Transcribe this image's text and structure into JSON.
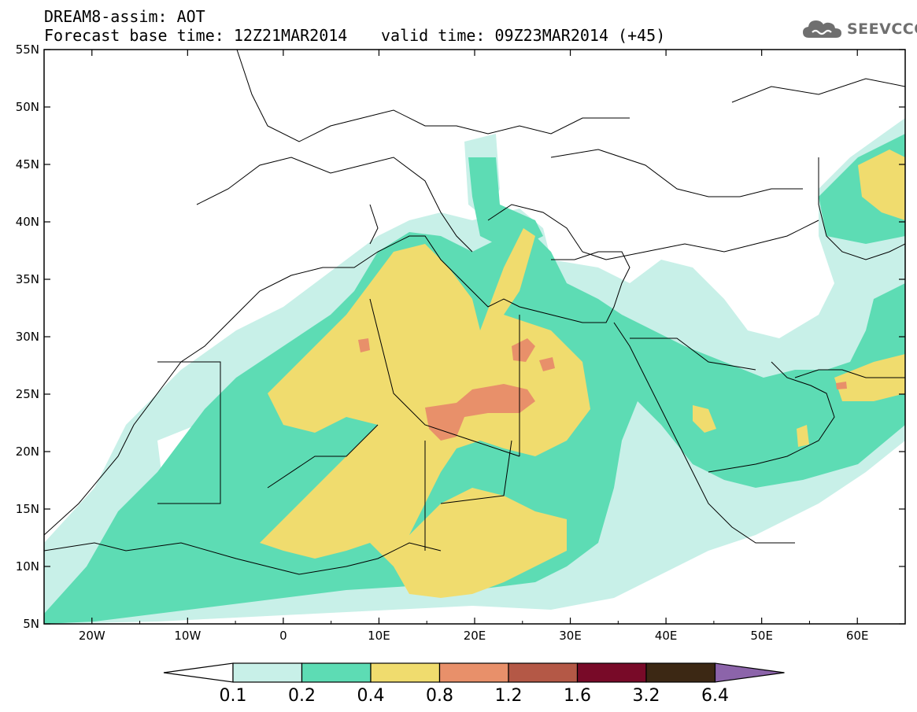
{
  "header": {
    "model_line": "DREAM8-assim: AOT",
    "base_time_line": "Forecast base time: 12Z21MAR2014",
    "valid_time_line": "valid time: 09Z23MAR2014 (+45)"
  },
  "logo": {
    "text": "SEEVCCC",
    "icon": "cloud-icon"
  },
  "map": {
    "lon_range": [
      -25,
      65
    ],
    "lat_range": [
      5,
      55
    ],
    "lat_labels": [
      "55N",
      "50N",
      "45N",
      "40N",
      "35N",
      "30N",
      "25N",
      "20N",
      "15N",
      "10N",
      "5N"
    ],
    "lat_values": [
      55,
      50,
      45,
      40,
      35,
      30,
      25,
      20,
      15,
      10,
      5
    ],
    "lon_labels": [
      "20W",
      "10W",
      "0",
      "10E",
      "20E",
      "30E",
      "40E",
      "50E",
      "60E"
    ],
    "lon_values": [
      -20,
      -10,
      0,
      10,
      20,
      30,
      40,
      50,
      60
    ]
  },
  "colorbar": {
    "labels": [
      "0.1",
      "0.2",
      "0.4",
      "0.8",
      "1.2",
      "1.6",
      "3.2",
      "6.4"
    ],
    "colors": [
      "#c8f0e8",
      "#5ddcb4",
      "#f0dc6e",
      "#e8906a",
      "#b45846",
      "#780a28",
      "#3c2814",
      "#8c64aa"
    ],
    "under_color": "#ffffff"
  },
  "legend_colors": {
    "aot_0_1_0_2": "#c8f0e8",
    "aot_0_2_0_4": "#5ddcb4",
    "aot_0_4_0_8": "#f0dc6e",
    "aot_0_8_1_2": "#e8906a",
    "aot_1_2_1_6": "#b45846"
  }
}
